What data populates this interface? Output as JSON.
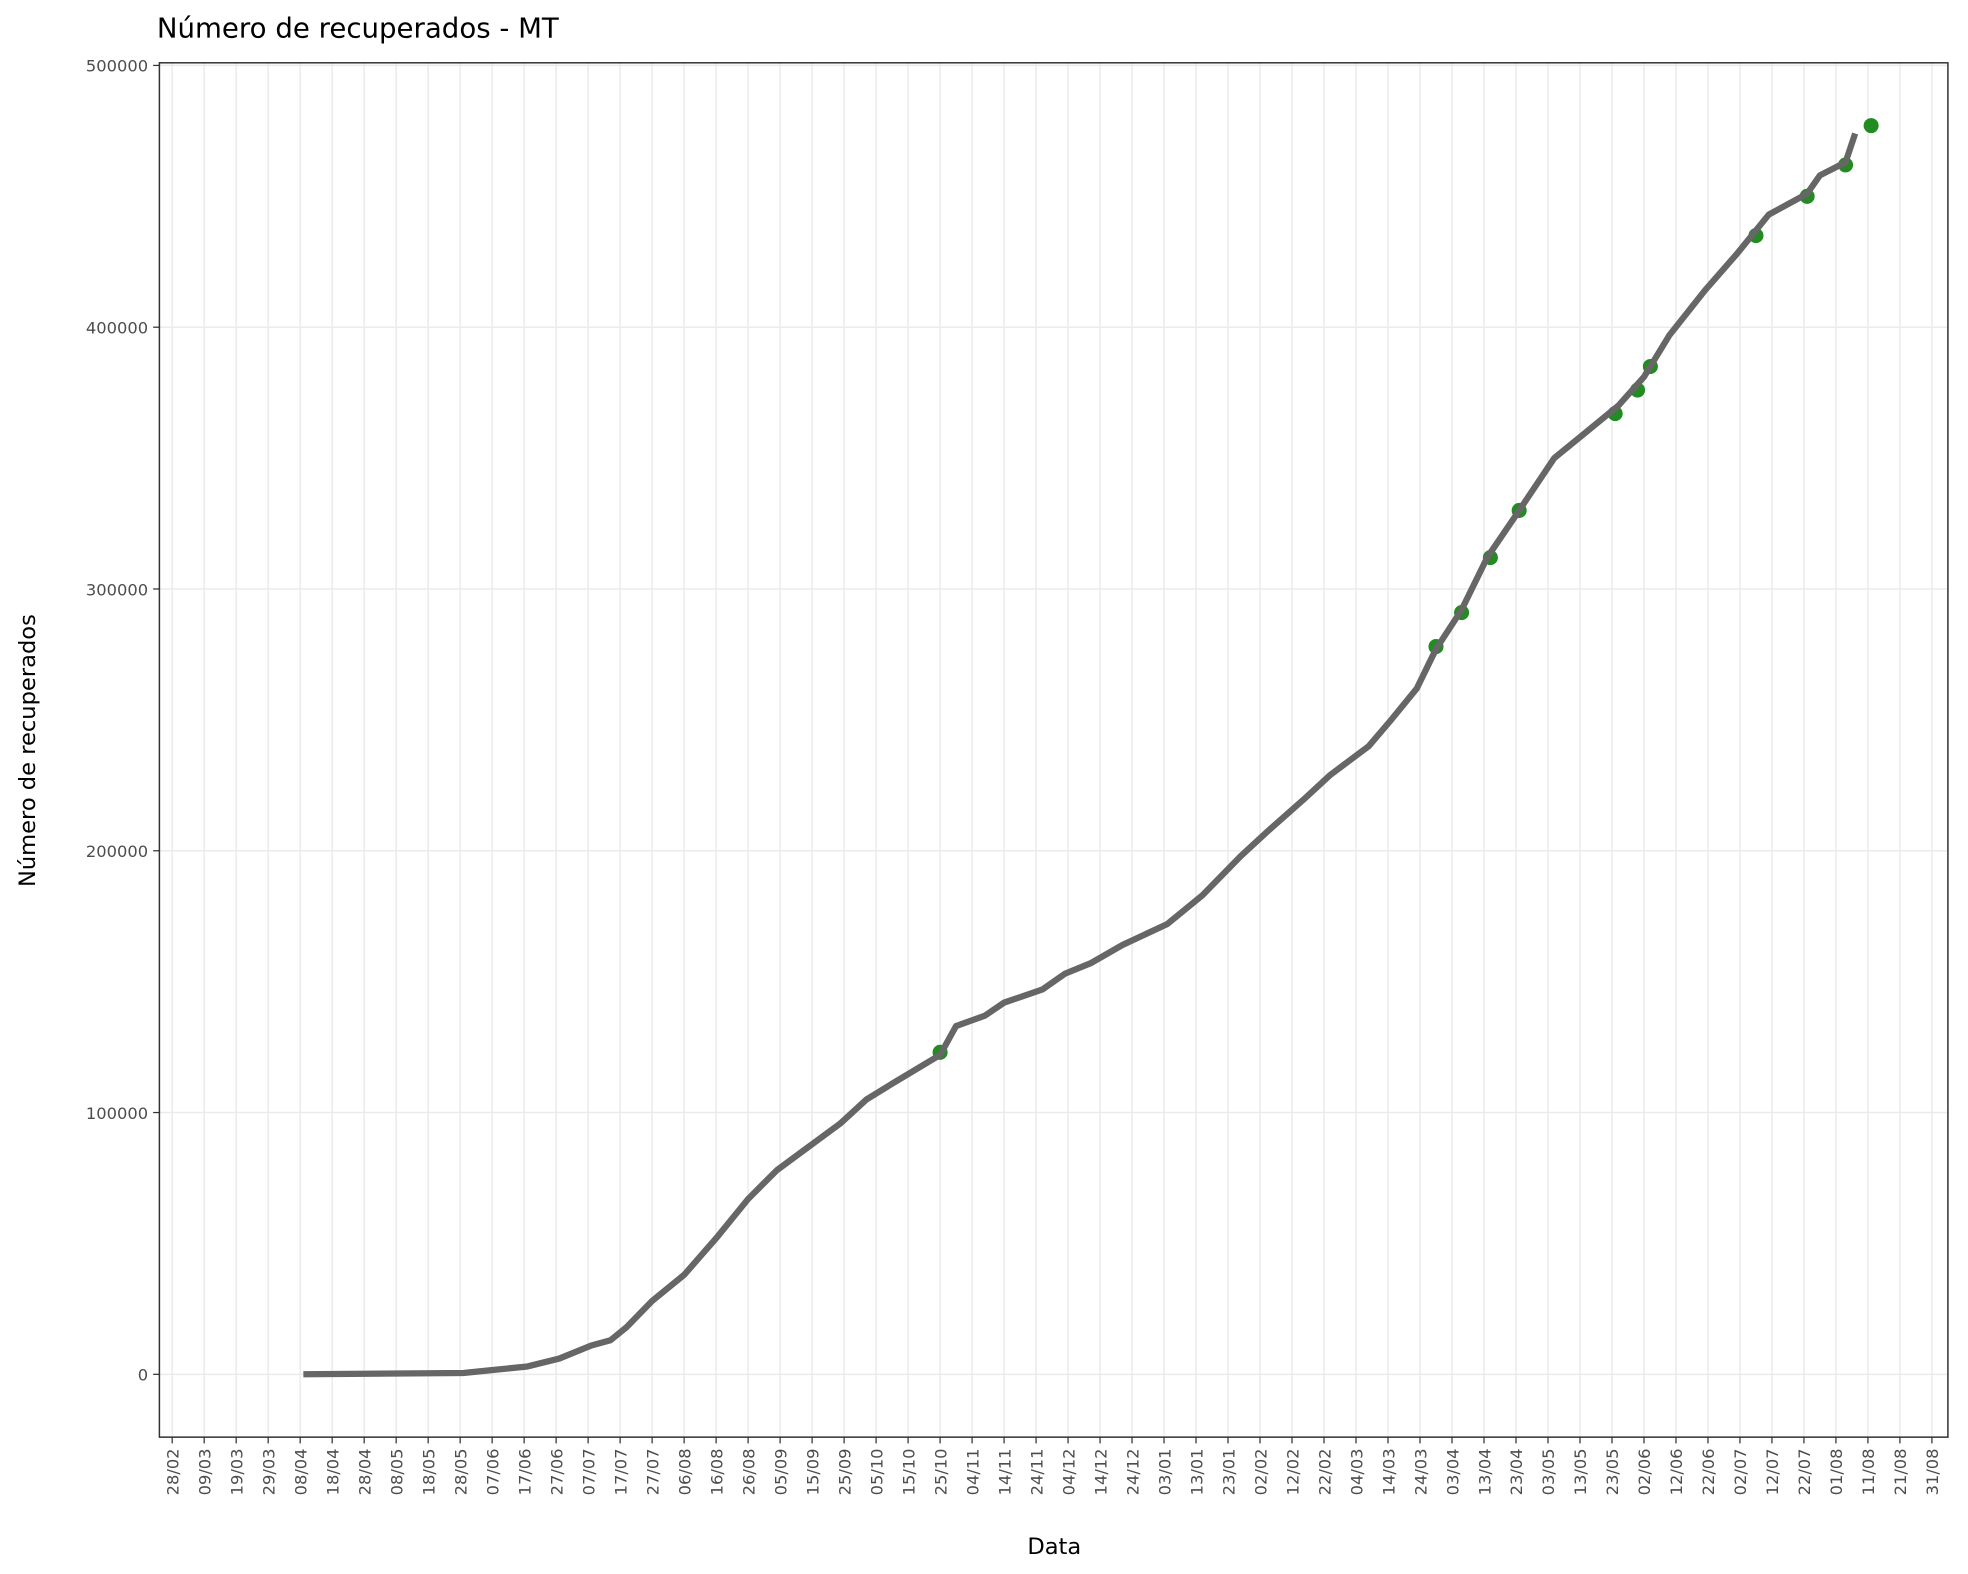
{
  "chart_data": {
    "type": "line",
    "title": "Número de recuperados - MT",
    "xlabel": "Data",
    "ylabel": "Número de recuperados",
    "xlim": [
      -4,
      555
    ],
    "ylim": [
      -24000,
      501000
    ],
    "yticks": [
      0,
      100000,
      200000,
      300000,
      400000,
      500000
    ],
    "xticks": [
      {
        "value": 0,
        "label": "28/02"
      },
      {
        "value": 10,
        "label": "09/03"
      },
      {
        "value": 20,
        "label": "19/03"
      },
      {
        "value": 30,
        "label": "29/03"
      },
      {
        "value": 40,
        "label": "08/04"
      },
      {
        "value": 50,
        "label": "18/04"
      },
      {
        "value": 60,
        "label": "28/04"
      },
      {
        "value": 70,
        "label": "08/05"
      },
      {
        "value": 80,
        "label": "18/05"
      },
      {
        "value": 90,
        "label": "28/05"
      },
      {
        "value": 100,
        "label": "07/06"
      },
      {
        "value": 110,
        "label": "17/06"
      },
      {
        "value": 120,
        "label": "27/06"
      },
      {
        "value": 130,
        "label": "07/07"
      },
      {
        "value": 140,
        "label": "17/07"
      },
      {
        "value": 150,
        "label": "27/07"
      },
      {
        "value": 160,
        "label": "06/08"
      },
      {
        "value": 170,
        "label": "16/08"
      },
      {
        "value": 180,
        "label": "26/08"
      },
      {
        "value": 190,
        "label": "05/09"
      },
      {
        "value": 200,
        "label": "15/09"
      },
      {
        "value": 210,
        "label": "25/09"
      },
      {
        "value": 220,
        "label": "05/10"
      },
      {
        "value": 230,
        "label": "15/10"
      },
      {
        "value": 240,
        "label": "25/10"
      },
      {
        "value": 250,
        "label": "04/11"
      },
      {
        "value": 260,
        "label": "14/11"
      },
      {
        "value": 270,
        "label": "24/11"
      },
      {
        "value": 280,
        "label": "04/12"
      },
      {
        "value": 290,
        "label": "14/12"
      },
      {
        "value": 300,
        "label": "24/12"
      },
      {
        "value": 310,
        "label": "03/01"
      },
      {
        "value": 320,
        "label": "13/01"
      },
      {
        "value": 330,
        "label": "23/01"
      },
      {
        "value": 340,
        "label": "02/02"
      },
      {
        "value": 350,
        "label": "12/02"
      },
      {
        "value": 360,
        "label": "22/02"
      },
      {
        "value": 370,
        "label": "04/03"
      },
      {
        "value": 380,
        "label": "14/03"
      },
      {
        "value": 390,
        "label": "24/03"
      },
      {
        "value": 400,
        "label": "03/04"
      },
      {
        "value": 410,
        "label": "13/04"
      },
      {
        "value": 420,
        "label": "23/04"
      },
      {
        "value": 430,
        "label": "03/05"
      },
      {
        "value": 440,
        "label": "13/05"
      },
      {
        "value": 450,
        "label": "23/05"
      },
      {
        "value": 460,
        "label": "02/06"
      },
      {
        "value": 470,
        "label": "12/06"
      },
      {
        "value": 480,
        "label": "22/06"
      },
      {
        "value": 490,
        "label": "02/07"
      },
      {
        "value": 500,
        "label": "12/07"
      },
      {
        "value": 510,
        "label": "22/07"
      },
      {
        "value": 520,
        "label": "01/08"
      },
      {
        "value": 530,
        "label": "11/08"
      },
      {
        "value": 540,
        "label": "21/08"
      },
      {
        "value": 550,
        "label": "31/08"
      }
    ],
    "grid": true,
    "line": {
      "color": "#666666",
      "x": [
        41,
        91,
        99,
        111,
        121,
        131,
        137,
        142,
        150,
        160,
        170,
        180,
        189,
        199,
        209,
        217,
        225,
        240,
        245,
        254,
        260,
        272,
        279,
        287,
        297,
        311,
        322,
        334,
        342,
        354,
        362,
        374,
        381,
        389,
        395,
        403,
        411,
        421,
        432,
        442,
        452,
        460,
        468,
        479,
        489,
        499,
        511,
        515,
        523,
        526
      ],
      "values": [
        0,
        500,
        1500,
        3000,
        6000,
        11000,
        13000,
        18000,
        28000,
        38000,
        52000,
        67000,
        78000,
        87000,
        96000,
        105000,
        111000,
        122000,
        133000,
        137000,
        142000,
        147000,
        153000,
        157000,
        164000,
        172000,
        183000,
        198000,
        207000,
        220000,
        229000,
        240000,
        250000,
        262000,
        277000,
        292000,
        312000,
        330000,
        350000,
        360000,
        370000,
        381000,
        397000,
        414000,
        428000,
        443000,
        451000,
        458000,
        463000,
        474000
      ]
    },
    "points": {
      "color": "#228b22",
      "x": [
        240,
        395,
        403,
        412,
        421,
        451,
        458,
        462,
        495,
        511,
        523,
        531
      ],
      "values": [
        123000,
        278000,
        291000,
        312000,
        330000,
        367000,
        376000,
        385000,
        435000,
        450000,
        462000,
        477000
      ]
    }
  }
}
